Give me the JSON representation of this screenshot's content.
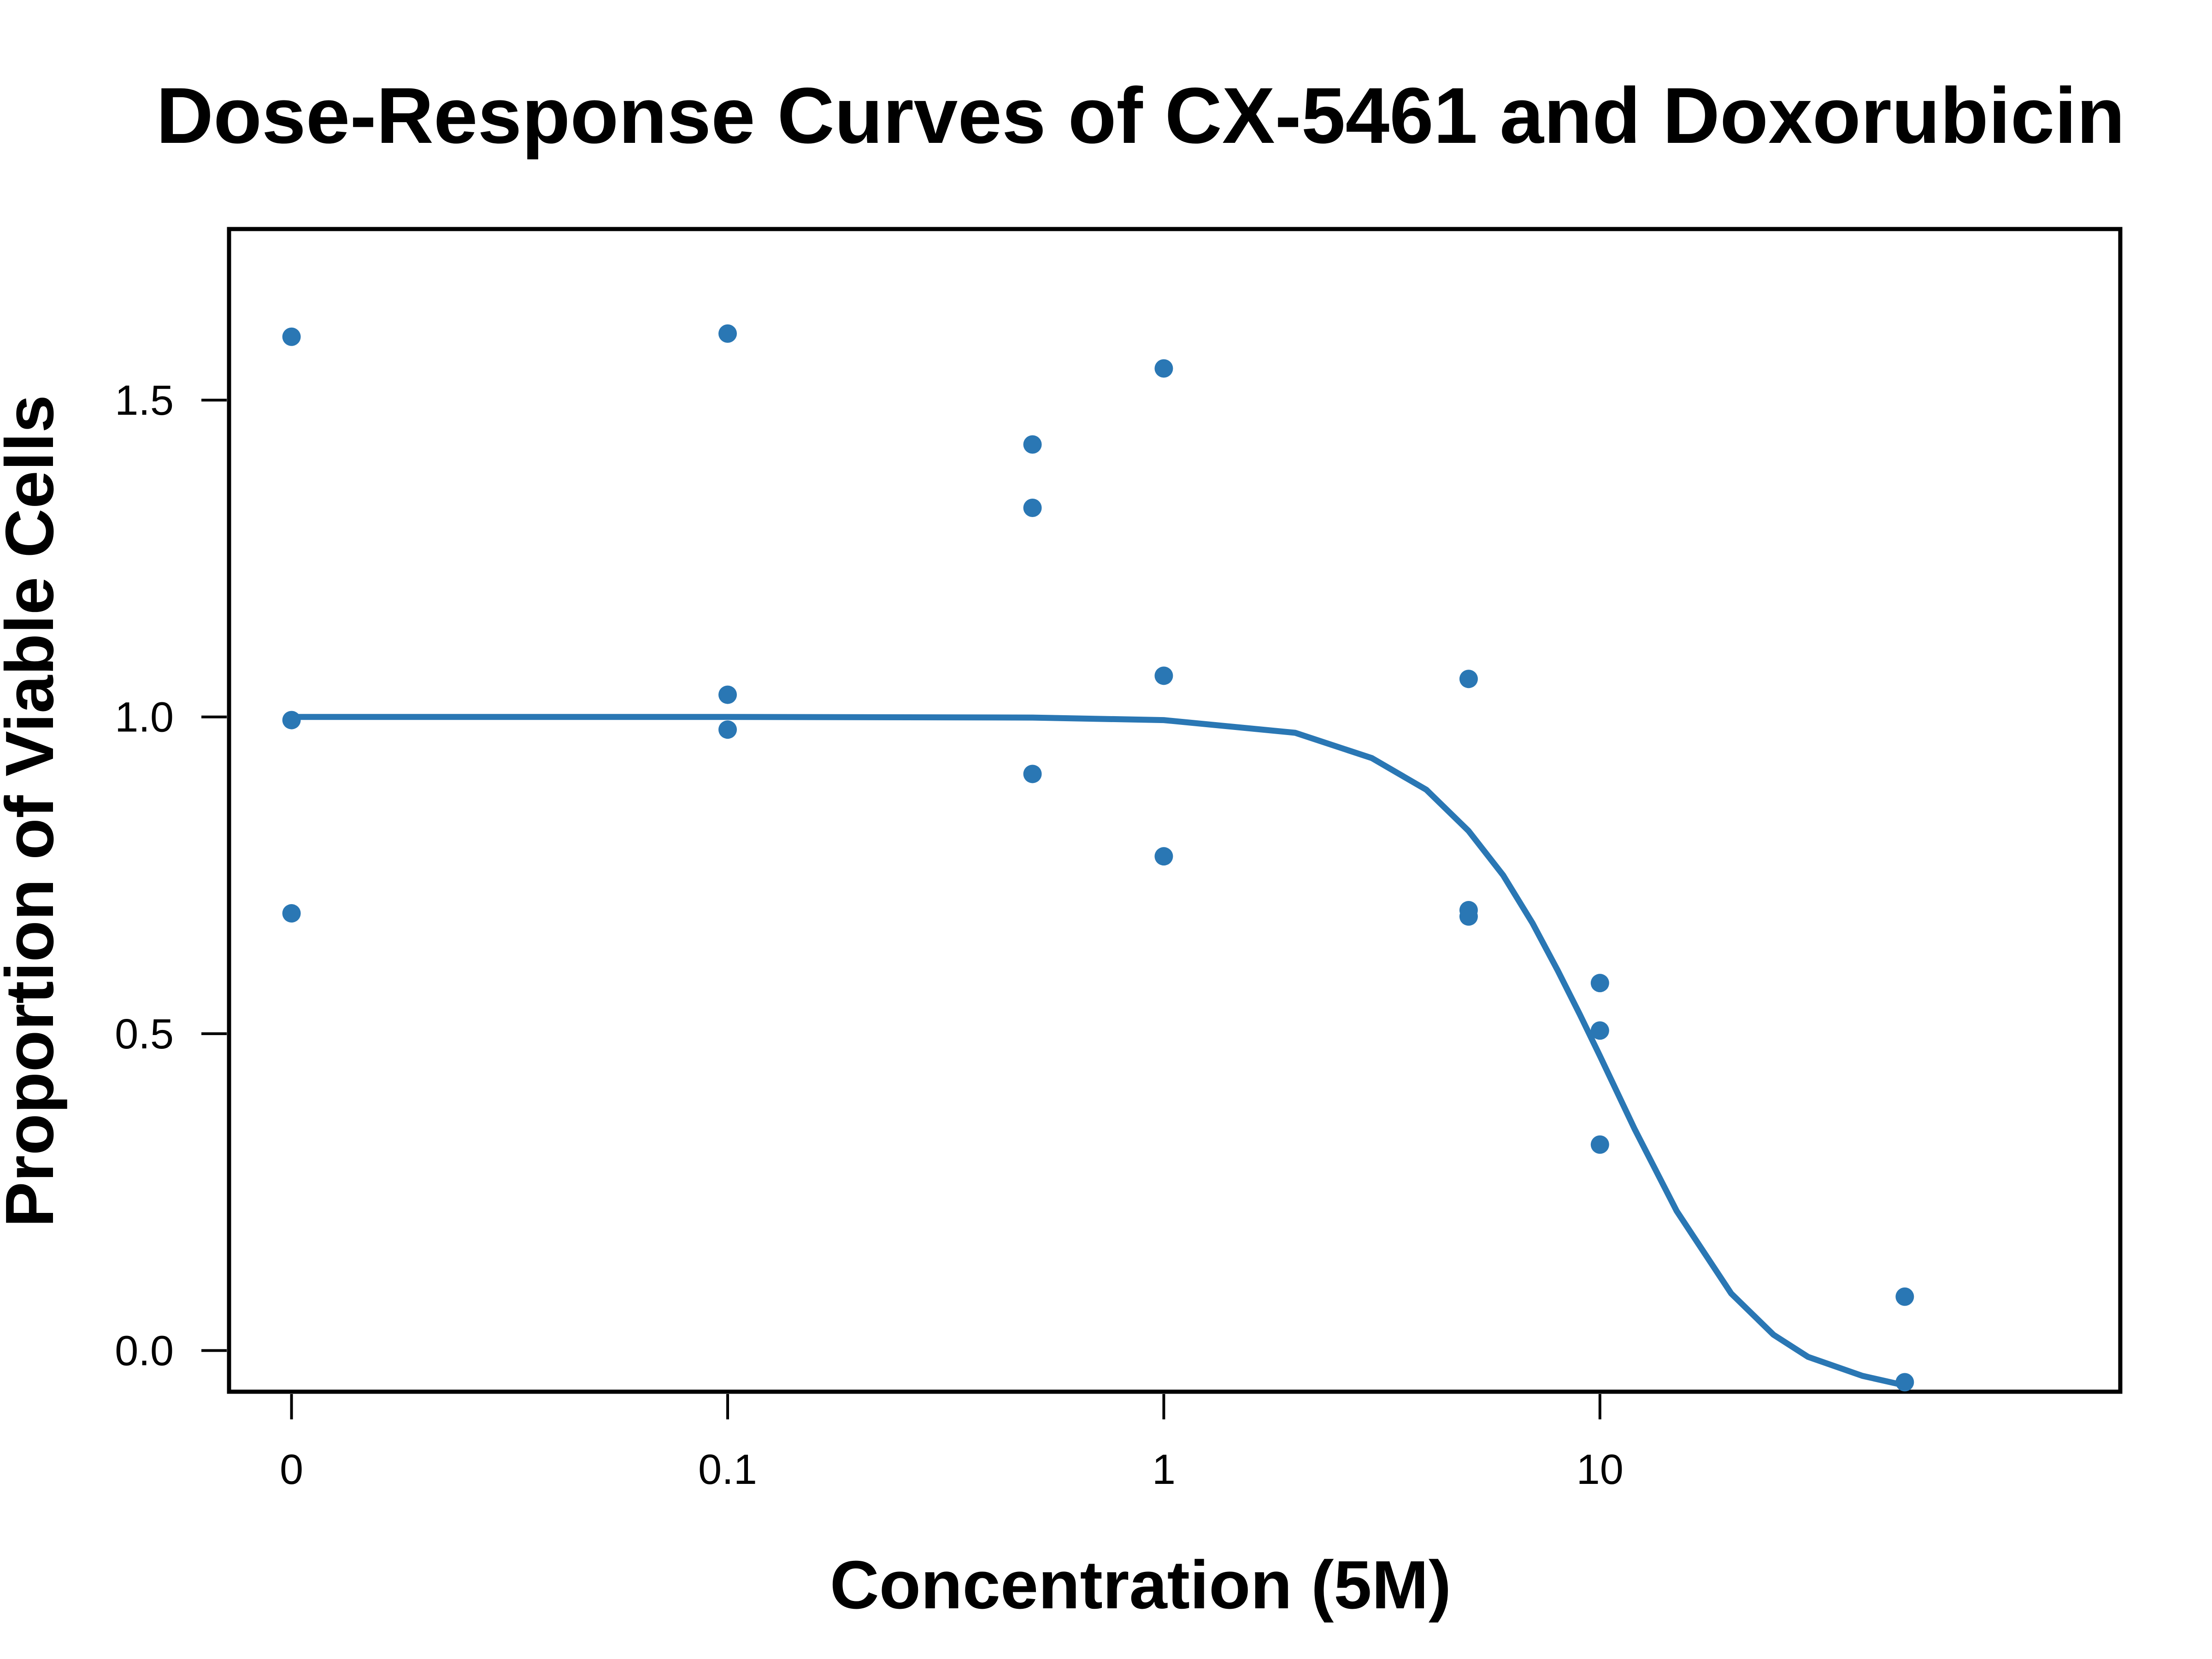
{
  "chart_data": {
    "type": "scatter",
    "title": "Dose-Response Curves of CX-5461 and Doxorubicin",
    "xlabel": "Concentration (5M)",
    "ylabel": "Proportion of Viable Cells",
    "x_scale": "log",
    "xticks": [
      {
        "value": 0.01,
        "label": "0"
      },
      {
        "value": 0.1,
        "label": "0.1"
      },
      {
        "value": 1,
        "label": "1"
      },
      {
        "value": 10,
        "label": "10"
      }
    ],
    "yticks": [
      {
        "value": 0.0,
        "label": "0.0"
      },
      {
        "value": 0.5,
        "label": "0.5"
      },
      {
        "value": 1.0,
        "label": "1.0"
      },
      {
        "value": 1.5,
        "label": "1.5"
      }
    ],
    "xlim": [
      0.00719,
      156
    ],
    "ylim": [
      -0.065,
      1.77
    ],
    "grid": false,
    "color": "#2a77b4",
    "points": [
      {
        "x": 0.01,
        "y": 1.6
      },
      {
        "x": 0.01,
        "y": 0.995
      },
      {
        "x": 0.01,
        "y": 0.69
      },
      {
        "x": 0.1,
        "y": 1.605
      },
      {
        "x": 0.1,
        "y": 1.035
      },
      {
        "x": 0.1,
        "y": 0.98
      },
      {
        "x": 0.5,
        "y": 1.43
      },
      {
        "x": 0.5,
        "y": 1.33
      },
      {
        "x": 0.5,
        "y": 0.91
      },
      {
        "x": 1,
        "y": 1.55
      },
      {
        "x": 1,
        "y": 1.065
      },
      {
        "x": 1,
        "y": 0.78
      },
      {
        "x": 5,
        "y": 1.06
      },
      {
        "x": 5,
        "y": 0.695
      },
      {
        "x": 5,
        "y": 0.685
      },
      {
        "x": 10,
        "y": 0.58
      },
      {
        "x": 10,
        "y": 0.505
      },
      {
        "x": 10,
        "y": 0.325
      },
      {
        "x": 50,
        "y": 0.085
      },
      {
        "x": 50,
        "y": -0.05
      }
    ],
    "curve": [
      {
        "x": 0.01,
        "y": 1.0
      },
      {
        "x": 0.1,
        "y": 1.0
      },
      {
        "x": 0.5,
        "y": 0.999
      },
      {
        "x": 1,
        "y": 0.995
      },
      {
        "x": 2,
        "y": 0.975
      },
      {
        "x": 3,
        "y": 0.935
      },
      {
        "x": 4,
        "y": 0.885
      },
      {
        "x": 5,
        "y": 0.82
      },
      {
        "x": 6,
        "y": 0.75
      },
      {
        "x": 7,
        "y": 0.675
      },
      {
        "x": 8,
        "y": 0.6
      },
      {
        "x": 9,
        "y": 0.53
      },
      {
        "x": 10,
        "y": 0.465
      },
      {
        "x": 12,
        "y": 0.35
      },
      {
        "x": 15,
        "y": 0.22
      },
      {
        "x": 20,
        "y": 0.09
      },
      {
        "x": 25,
        "y": 0.025
      },
      {
        "x": 30,
        "y": -0.01
      },
      {
        "x": 40,
        "y": -0.04
      },
      {
        "x": 50,
        "y": -0.055
      }
    ]
  }
}
